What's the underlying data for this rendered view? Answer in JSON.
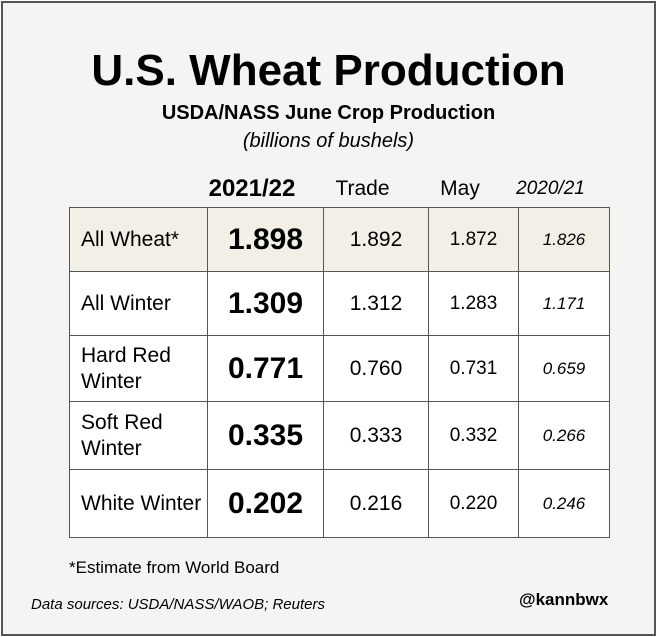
{
  "title": "U.S. Wheat Production",
  "subtitle": "USDA/NASS June Crop Production",
  "units": "(billions of bushels)",
  "colors": {
    "frame_border": "#555555",
    "background": "#f4f4f2",
    "highlight_row": "#f2efe6",
    "cell": "#ffffff",
    "text": "#000000"
  },
  "chart_data": {
    "type": "table",
    "title": "U.S. Wheat Production",
    "subtitle": "USDA/NASS June Crop Production",
    "unit": "(billions of bushels)",
    "columns": [
      "2021/22",
      "Trade",
      "May",
      "2020/21"
    ],
    "rows": [
      {
        "label": "All Wheat*",
        "values": [
          "1.898",
          "1.892",
          "1.872",
          "1.826"
        ],
        "highlighted": true
      },
      {
        "label": "All Winter",
        "values": [
          "1.309",
          "1.312",
          "1.283",
          "1.171"
        ],
        "highlighted": false
      },
      {
        "label": "Hard Red Winter",
        "values": [
          "0.771",
          "0.760",
          "0.731",
          "0.659"
        ],
        "highlighted": false
      },
      {
        "label": "Soft Red Winter",
        "values": [
          "0.335",
          "0.333",
          "0.332",
          "0.266"
        ],
        "highlighted": false
      },
      {
        "label": "White Winter",
        "values": [
          "0.202",
          "0.216",
          "0.220",
          "0.246"
        ],
        "highlighted": false
      }
    ]
  },
  "footnote": "*Estimate from World Board",
  "sources": "Data sources: USDA/NASS/WAOB; Reuters",
  "handle": "@kannbwx"
}
